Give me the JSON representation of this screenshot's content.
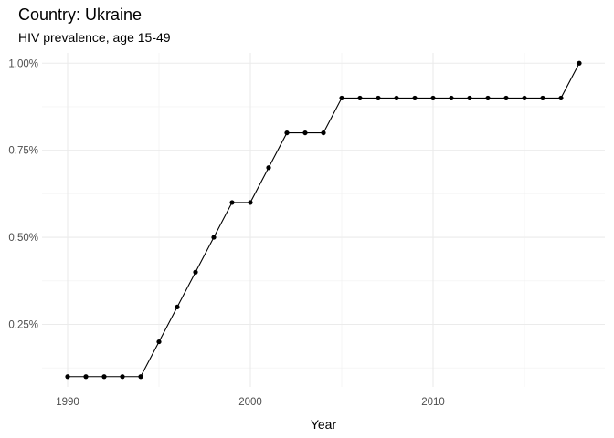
{
  "header": {
    "title": "Country: Ukraine",
    "subtitle": "HIV prevalence, age 15-49"
  },
  "chart_data": {
    "type": "line",
    "title": "Country: Ukraine",
    "subtitle": "HIV prevalence, age 15-49",
    "xlabel": "Year",
    "ylabel": "",
    "xlim": [
      1988.6,
      2019.4
    ],
    "ylim": [
      0.0705,
      1.0295
    ],
    "x_ticks": [
      1990,
      2000,
      2010
    ],
    "y_ticks": [
      0.25,
      0.5,
      0.75,
      1.0
    ],
    "y_tick_labels": [
      "0.25%",
      "0.50%",
      "0.75%",
      "1.00%"
    ],
    "grid": true,
    "line_color": "#000000",
    "series": [
      {
        "x": [
          1990,
          1991,
          1992,
          1993,
          1994,
          1995,
          1996,
          1997,
          1998,
          1999,
          2000,
          2001,
          2002,
          2003,
          2004,
          2005,
          2006,
          2007,
          2008,
          2009,
          2010,
          2011,
          2012,
          2013,
          2014,
          2015,
          2016,
          2017,
          2018
        ],
        "values": [
          0.1,
          0.1,
          0.1,
          0.1,
          0.1,
          0.2,
          0.3,
          0.4,
          0.5,
          0.6,
          0.6,
          0.7,
          0.8,
          0.8,
          0.8,
          0.9,
          0.9,
          0.9,
          0.9,
          0.9,
          0.9,
          0.9,
          0.9,
          0.9,
          0.9,
          0.9,
          0.9,
          0.9,
          1.0
        ]
      }
    ]
  }
}
